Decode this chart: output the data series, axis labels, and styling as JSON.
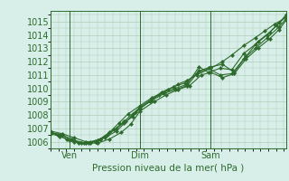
{
  "xlabel": "Pression niveau de la mer( hPa )",
  "bg_color": "#d8eee8",
  "grid_color": "#b0ccbb",
  "line_color": "#2d6b2d",
  "marker_color": "#2d6b2d",
  "ylim": [
    1005.5,
    1015.8
  ],
  "yticks": [
    1006,
    1007,
    1008,
    1009,
    1010,
    1011,
    1012,
    1013,
    1014,
    1015
  ],
  "xtick_labels": [
    "Ven",
    "Dim",
    "Sam"
  ],
  "xtick_positions": [
    0.08,
    0.38,
    0.68
  ],
  "series": [
    [
      0.0,
      1006.7,
      0.03,
      1006.5,
      0.07,
      1006.2,
      0.1,
      1006.0,
      0.14,
      1005.9,
      0.17,
      1006.0,
      0.21,
      1006.2,
      0.24,
      1006.5,
      0.28,
      1007.0,
      0.31,
      1007.4,
      0.35,
      1007.9,
      0.38,
      1008.5,
      0.42,
      1009.0,
      0.46,
      1009.5,
      0.5,
      1009.9,
      0.54,
      1010.3,
      0.58,
      1010.6,
      0.62,
      1011.0,
      0.68,
      1011.5,
      0.73,
      1012.0,
      0.77,
      1012.5,
      0.82,
      1013.2,
      0.87,
      1013.8,
      0.91,
      1014.3,
      0.95,
      1014.8,
      1.0,
      1015.3
    ],
    [
      0.0,
      1006.6,
      0.04,
      1006.4,
      0.08,
      1006.1,
      0.12,
      1005.9,
      0.16,
      1005.9,
      0.2,
      1006.1,
      0.23,
      1006.4,
      0.27,
      1006.9,
      0.31,
      1007.5,
      0.35,
      1008.1,
      0.38,
      1008.6,
      0.43,
      1009.2,
      0.47,
      1009.7,
      0.52,
      1010.1,
      0.57,
      1010.4,
      0.62,
      1011.1,
      0.67,
      1011.5,
      0.72,
      1011.0,
      0.77,
      1011.1,
      0.82,
      1012.2,
      0.87,
      1013.0,
      0.92,
      1013.8,
      0.97,
      1014.6,
      1.0,
      1015.2
    ],
    [
      0.0,
      1006.7,
      0.04,
      1006.5,
      0.09,
      1006.2,
      0.13,
      1005.9,
      0.17,
      1005.9,
      0.21,
      1006.2,
      0.25,
      1006.7,
      0.29,
      1007.4,
      0.33,
      1008.1,
      0.38,
      1008.7,
      0.43,
      1009.3,
      0.48,
      1009.7,
      0.53,
      1010.0,
      0.58,
      1010.3,
      0.63,
      1011.6,
      0.67,
      1011.2,
      0.72,
      1011.5,
      0.77,
      1011.4,
      0.82,
      1012.6,
      0.87,
      1013.3,
      0.92,
      1014.0,
      0.96,
      1014.7,
      1.0,
      1015.4
    ],
    [
      0.0,
      1006.8,
      0.05,
      1006.6,
      0.1,
      1006.3,
      0.15,
      1006.0,
      0.19,
      1006.0,
      0.23,
      1006.3,
      0.28,
      1006.8,
      0.32,
      1007.5,
      0.36,
      1008.2,
      0.38,
      1008.5,
      0.43,
      1009.1,
      0.48,
      1009.6,
      0.53,
      1009.9,
      0.58,
      1010.2,
      0.63,
      1011.3,
      0.68,
      1011.6,
      0.73,
      1011.8,
      0.78,
      1011.2,
      0.83,
      1012.4,
      0.88,
      1013.5,
      0.93,
      1014.2,
      0.97,
      1014.9,
      1.0,
      1015.5
    ],
    [
      0.0,
      1006.7,
      0.05,
      1006.5,
      0.1,
      1006.1,
      0.15,
      1005.9,
      0.2,
      1005.9,
      0.25,
      1006.2,
      0.3,
      1006.7,
      0.34,
      1007.3,
      0.38,
      1008.3,
      0.44,
      1009.0,
      0.49,
      1009.5,
      0.54,
      1009.9,
      0.59,
      1010.2,
      0.64,
      1011.0,
      0.68,
      1011.2,
      0.73,
      1010.8,
      0.78,
      1011.1,
      0.83,
      1012.2,
      0.88,
      1013.0,
      0.93,
      1013.7,
      0.97,
      1014.4,
      1.0,
      1015.1
    ]
  ]
}
